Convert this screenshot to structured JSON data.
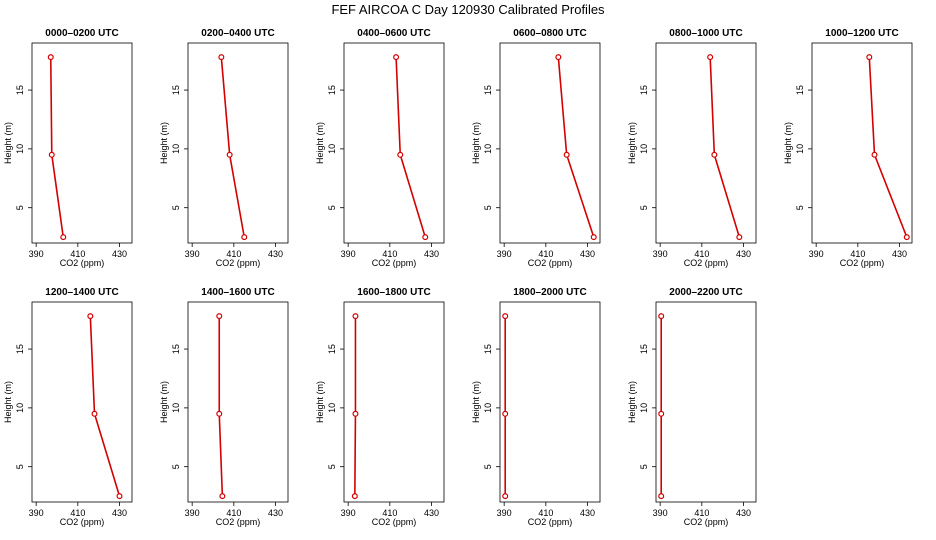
{
  "figure": {
    "title": "FEF  AIRCOA C  Day 120930  Calibrated Profiles"
  },
  "colors": {
    "line": "#d40000",
    "marker": "#d40000",
    "axis": "#000000"
  },
  "chart_data": [
    {
      "type": "line",
      "title": "0000–0200 UTC",
      "xlabel": "CO2 (ppm)",
      "ylabel": "Height (m)",
      "xlim": [
        388,
        436
      ],
      "ylim": [
        2,
        19
      ],
      "xticks": [
        390,
        410,
        430
      ],
      "yticks": [
        5,
        10,
        15
      ],
      "x": [
        397.0,
        397.5,
        403.0
      ],
      "y": [
        17.8,
        9.5,
        2.5
      ]
    },
    {
      "type": "line",
      "title": "0200–0400 UTC",
      "xlabel": "CO2 (ppm)",
      "ylabel": "Height (m)",
      "xlim": [
        388,
        436
      ],
      "ylim": [
        2,
        19
      ],
      "xticks": [
        390,
        410,
        430
      ],
      "yticks": [
        5,
        10,
        15
      ],
      "x": [
        404.0,
        408.0,
        415.0
      ],
      "y": [
        17.8,
        9.5,
        2.5
      ]
    },
    {
      "type": "line",
      "title": "0400–0600 UTC",
      "xlabel": "CO2 (ppm)",
      "ylabel": "Height (m)",
      "xlim": [
        388,
        436
      ],
      "ylim": [
        2,
        19
      ],
      "xticks": [
        390,
        410,
        430
      ],
      "yticks": [
        5,
        10,
        15
      ],
      "x": [
        413.0,
        415.0,
        427.0
      ],
      "y": [
        17.8,
        9.5,
        2.5
      ]
    },
    {
      "type": "line",
      "title": "0600–0800 UTC",
      "xlabel": "CO2 (ppm)",
      "ylabel": "Height (m)",
      "xlim": [
        388,
        436
      ],
      "ylim": [
        2,
        19
      ],
      "xticks": [
        390,
        410,
        430
      ],
      "yticks": [
        5,
        10,
        15
      ],
      "x": [
        416.0,
        420.0,
        433.0
      ],
      "y": [
        17.8,
        9.5,
        2.5
      ]
    },
    {
      "type": "line",
      "title": "0800–1000 UTC",
      "xlabel": "CO2 (ppm)",
      "ylabel": "Height (m)",
      "xlim": [
        388,
        436
      ],
      "ylim": [
        2,
        19
      ],
      "xticks": [
        390,
        410,
        430
      ],
      "yticks": [
        5,
        10,
        15
      ],
      "x": [
        414.0,
        416.0,
        428.0
      ],
      "y": [
        17.8,
        9.5,
        2.5
      ]
    },
    {
      "type": "line",
      "title": "1000–1200 UTC",
      "xlabel": "CO2 (ppm)",
      "ylabel": "Height (m)",
      "xlim": [
        388,
        436
      ],
      "ylim": [
        2,
        19
      ],
      "xticks": [
        390,
        410,
        430
      ],
      "yticks": [
        5,
        10,
        15
      ],
      "x": [
        415.5,
        418.0,
        433.5
      ],
      "y": [
        17.8,
        9.5,
        2.5
      ]
    },
    {
      "type": "line",
      "title": "1200–1400 UTC",
      "xlabel": "CO2 (ppm)",
      "ylabel": "Height (m)",
      "xlim": [
        388,
        436
      ],
      "ylim": [
        2,
        19
      ],
      "xticks": [
        390,
        410,
        430
      ],
      "yticks": [
        5,
        10,
        15
      ],
      "x": [
        416.0,
        418.0,
        430.0
      ],
      "y": [
        17.8,
        9.5,
        2.5
      ]
    },
    {
      "type": "line",
      "title": "1400–1600 UTC",
      "xlabel": "CO2 (ppm)",
      "ylabel": "Height (m)",
      "xlim": [
        388,
        436
      ],
      "ylim": [
        2,
        19
      ],
      "xticks": [
        390,
        410,
        430
      ],
      "yticks": [
        5,
        10,
        15
      ],
      "x": [
        403.0,
        403.0,
        404.5
      ],
      "y": [
        17.8,
        9.5,
        2.5
      ]
    },
    {
      "type": "line",
      "title": "1600–1800 UTC",
      "xlabel": "CO2 (ppm)",
      "ylabel": "Height (m)",
      "xlim": [
        388,
        436
      ],
      "ylim": [
        2,
        19
      ],
      "xticks": [
        390,
        410,
        430
      ],
      "yticks": [
        5,
        10,
        15
      ],
      "x": [
        393.5,
        393.5,
        393.2
      ],
      "y": [
        17.8,
        9.5,
        2.5
      ]
    },
    {
      "type": "line",
      "title": "1800–2000 UTC",
      "xlabel": "CO2 (ppm)",
      "ylabel": "Height (m)",
      "xlim": [
        388,
        436
      ],
      "ylim": [
        2,
        19
      ],
      "xticks": [
        390,
        410,
        430
      ],
      "yticks": [
        5,
        10,
        15
      ],
      "x": [
        390.5,
        390.5,
        390.5
      ],
      "y": [
        17.8,
        9.5,
        2.5
      ]
    },
    {
      "type": "line",
      "title": "2000–2200 UTC",
      "xlabel": "CO2 (ppm)",
      "ylabel": "Height (m)",
      "xlim": [
        388,
        436
      ],
      "ylim": [
        2,
        19
      ],
      "xticks": [
        390,
        410,
        430
      ],
      "yticks": [
        5,
        10,
        15
      ],
      "x": [
        390.5,
        390.5,
        390.5
      ],
      "y": [
        17.8,
        9.5,
        2.5
      ]
    }
  ]
}
